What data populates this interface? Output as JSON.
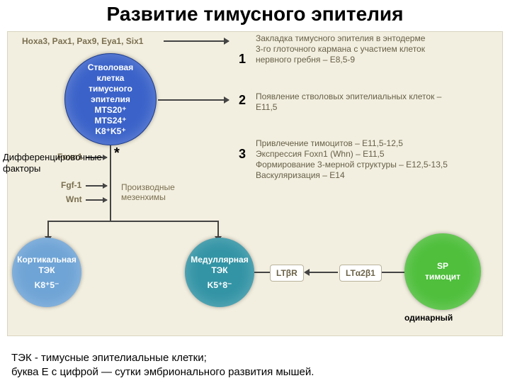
{
  "title": "Развитие тимусного эпителия",
  "background_color": "#f3efe0",
  "stem_cell": {
    "lines": [
      "Стволовая",
      "клетка",
      "тимусного",
      "эпителия",
      "MTS20⁺",
      "MTS24⁺",
      "K8⁺K5⁺"
    ],
    "fill": "#3a62c9",
    "stroke": "#1f3e8c"
  },
  "cells": {
    "cortical": {
      "lines": [
        "Кортикальная",
        "ТЭК",
        "",
        "K8⁺5⁻"
      ],
      "fill": "#6fa4d6"
    },
    "medullary": {
      "lines": [
        "Медуллярная",
        "ТЭК",
        "",
        "K5⁺8⁻"
      ],
      "fill": "#3394a5"
    },
    "sp": {
      "lines": [
        "SP",
        "тимоцит"
      ],
      "fill": "#4fbf3c"
    }
  },
  "genes_label": "Hoxa3, Pax1, Pax9, Eya1, Six1",
  "steps": {
    "s1": {
      "num": "1",
      "text": "Закладка тимусного эпителия в энтодерме\n3-го глоточного кармана с участием клеток\nнервного гребня – E8,5-9"
    },
    "s2": {
      "num": "2",
      "text": "Появление стволовых эпителиальных клеток –\nE11,5"
    },
    "s3": {
      "num": "3",
      "text": "Привлечение тимоцитов – E11,5-12,5\nЭкспрессия Foxn1 (Whn) – E11,5\nФормирование 3-мерной структуры – E12,5-13,5\nВаскуляризация – E14"
    }
  },
  "factors_label": "Дифференцировочные\nфакторы",
  "factors": {
    "foxn1": "Foxn1",
    "fgf": "Fgf-1",
    "wnt": "Wnt"
  },
  "factors_star": "*",
  "mesenchyme_label": "Производные\nмезенхимы",
  "lt_r": "LTβR",
  "lt_lig": "LTα2β1",
  "single_label": "одинарный",
  "footer_line1": "ТЭК - тимусные эпителиальные клетки;",
  "footer_line2": "буква Е с цифрой — сутки эмбрионального развития мышей."
}
